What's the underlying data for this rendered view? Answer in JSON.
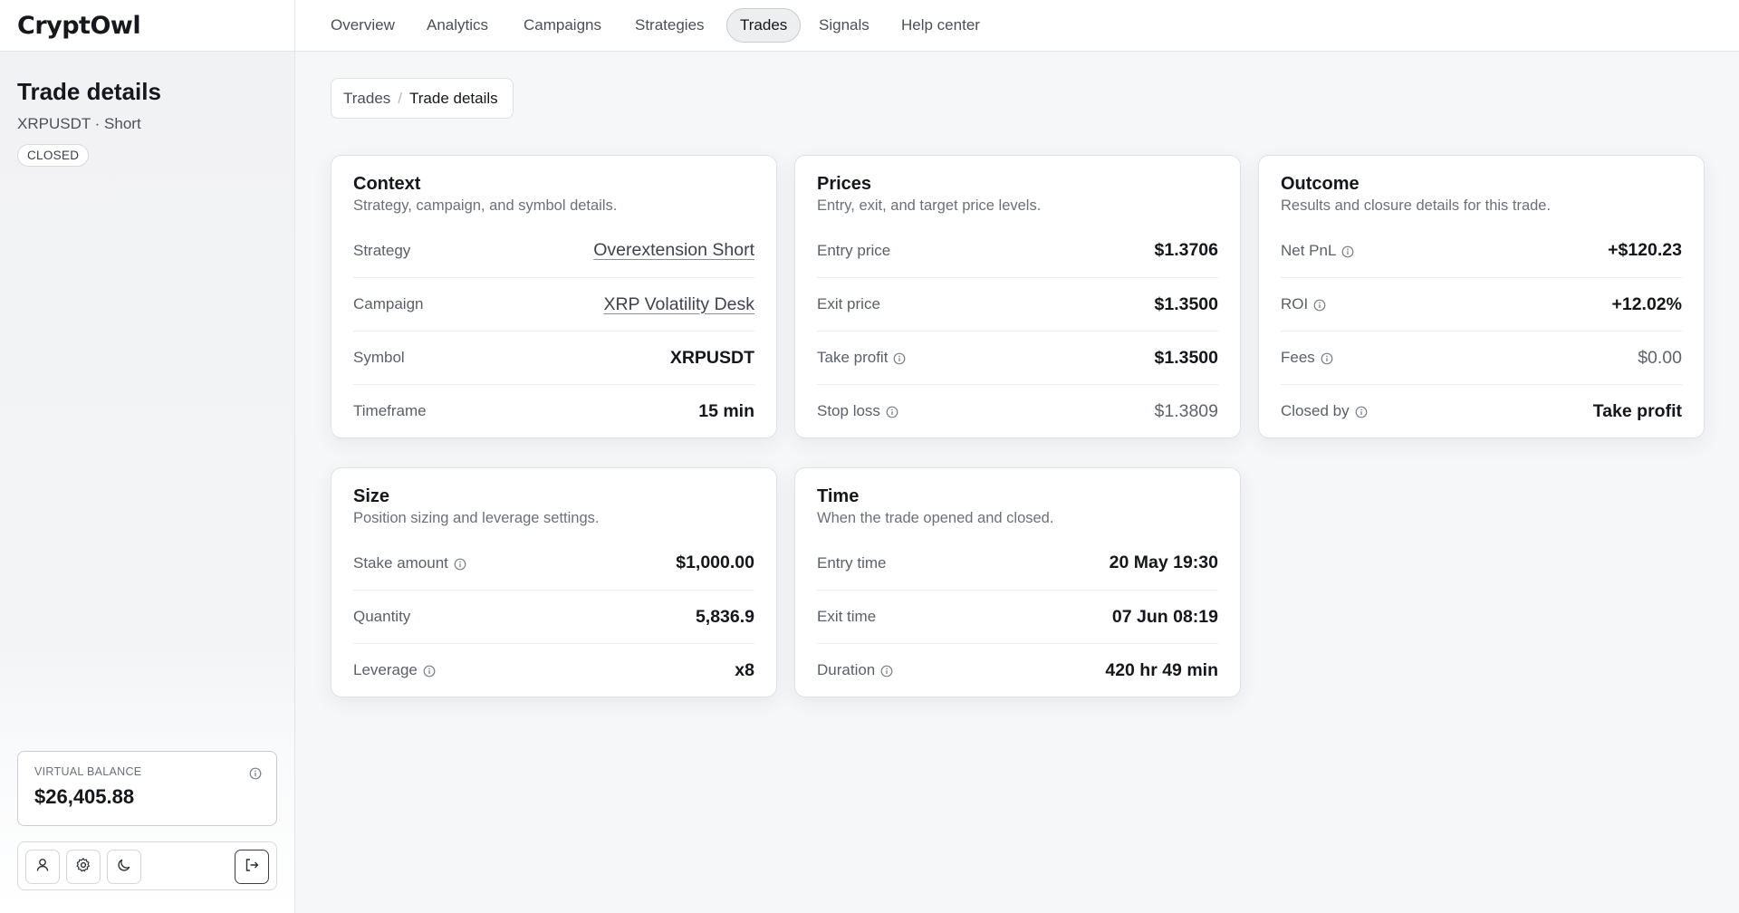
{
  "app": {
    "logo": "CryptOwl"
  },
  "nav": {
    "items": [
      {
        "label": "Overview",
        "active": false
      },
      {
        "label": "Analytics",
        "active": false
      },
      {
        "label": "Campaigns",
        "active": false
      },
      {
        "label": "Strategies",
        "active": false
      },
      {
        "label": "Trades",
        "active": true
      },
      {
        "label": "Signals",
        "active": false
      },
      {
        "label": "Help center",
        "active": false
      }
    ]
  },
  "sidebar": {
    "title": "Trade details",
    "subtitle": "XRPUSDT · Short",
    "status": "CLOSED",
    "balance": {
      "label": "VIRTUAL BALANCE",
      "value": "$26,405.88"
    },
    "actions": [
      "user-icon",
      "gear-icon",
      "theme-icon",
      "logout-icon"
    ]
  },
  "breadcrumb": {
    "parent": "Trades",
    "separator": "/",
    "current": "Trade details"
  },
  "cards": {
    "context": {
      "title": "Context",
      "desc": "Strategy, campaign, and symbol details.",
      "rows": [
        {
          "label": "Strategy",
          "value": "Overextension Short"
        },
        {
          "label": "Campaign",
          "value": "XRP Volatility Desk"
        },
        {
          "label": "Symbol",
          "value": "XRPUSDT"
        },
        {
          "label": "Timeframe",
          "value": "15 min"
        }
      ]
    },
    "prices": {
      "title": "Prices",
      "desc": "Entry, exit, and target price levels.",
      "rows": [
        {
          "label": "Entry price",
          "value": "$1.3706"
        },
        {
          "label": "Exit price",
          "value": "$1.3500"
        },
        {
          "label": "Take profit",
          "value": "$1.3500"
        },
        {
          "label": "Stop loss",
          "value": "$1.3809"
        }
      ]
    },
    "outcome": {
      "title": "Outcome",
      "desc": "Results and closure details for this trade.",
      "rows": [
        {
          "label": "Net PnL",
          "value": "+$120.23"
        },
        {
          "label": "ROI",
          "value": "+12.02%"
        },
        {
          "label": "Fees",
          "value": "$0.00"
        },
        {
          "label": "Closed by",
          "value": "Take profit"
        }
      ]
    },
    "size": {
      "title": "Size",
      "desc": "Position sizing and leverage settings.",
      "rows": [
        {
          "label": "Stake amount",
          "value": "$1,000.00"
        },
        {
          "label": "Quantity",
          "value": "5,836.9"
        },
        {
          "label": "Leverage",
          "value": "x8"
        }
      ]
    },
    "time": {
      "title": "Time",
      "desc": "When the trade opened and closed.",
      "rows": [
        {
          "label": "Entry time",
          "value": "20 May 19:30"
        },
        {
          "label": "Exit time",
          "value": "07 Jun 08:19"
        },
        {
          "label": "Duration",
          "value": "420 hr 49 min"
        }
      ]
    }
  }
}
